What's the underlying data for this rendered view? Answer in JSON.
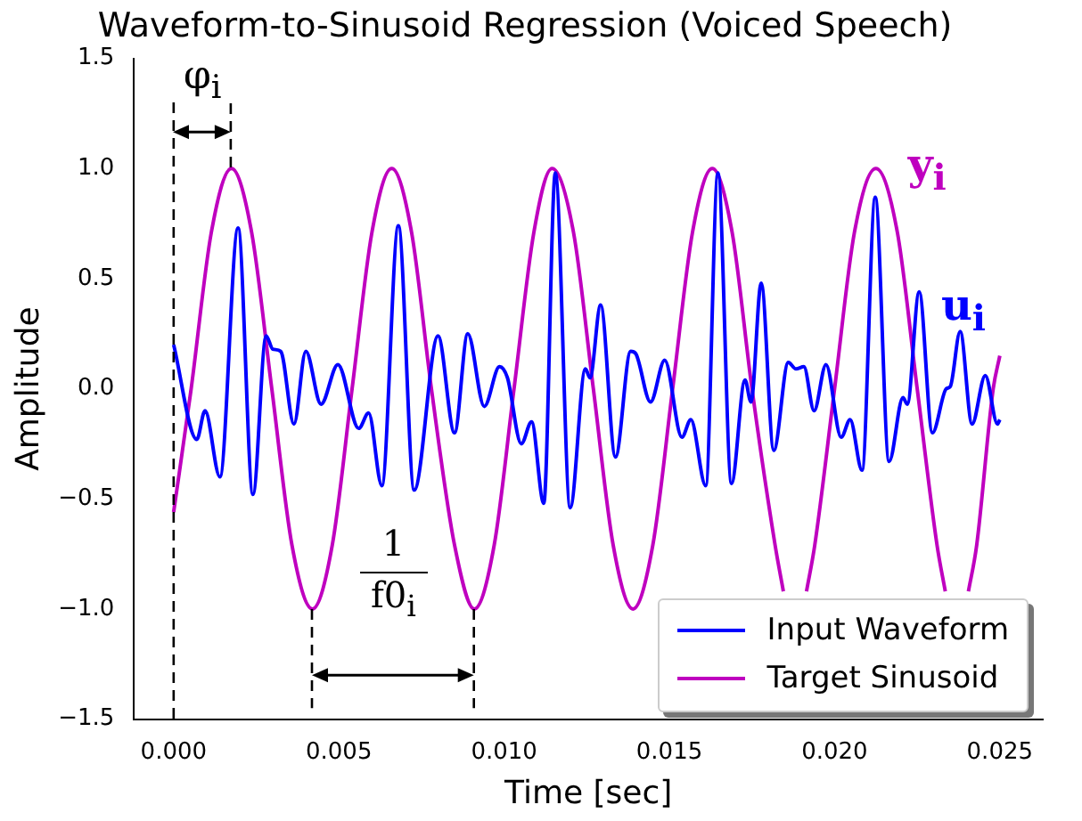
{
  "chart_data": {
    "type": "line",
    "title": "Waveform-to-Sinusoid Regression (Voiced Speech)",
    "xlabel": "Time [sec]",
    "ylabel": "Amplitude",
    "xlim": [
      -0.0012,
      0.0263
    ],
    "ylim": [
      -1.5,
      1.5
    ],
    "xticks": [
      {
        "value": 0,
        "label": "0.000"
      },
      {
        "value": 0.005,
        "label": "0.005"
      },
      {
        "value": 0.01,
        "label": "0.010"
      },
      {
        "value": 0.015,
        "label": "0.015"
      },
      {
        "value": 0.02,
        "label": "0.020"
      },
      {
        "value": 0.025,
        "label": "0.025"
      }
    ],
    "yticks": [
      {
        "value": -1.5,
        "label": "−1.5"
      },
      {
        "value": -1,
        "label": "−1.0"
      },
      {
        "value": -0.5,
        "label": "−0.5"
      },
      {
        "value": 0,
        "label": "0.0"
      },
      {
        "value": 0.5,
        "label": "0.5"
      },
      {
        "value": 1,
        "label": "1.0"
      },
      {
        "value": 1.5,
        "label": "1.5"
      }
    ],
    "grid": false,
    "legend": "bottom right",
    "line_style": "solid",
    "marker": "none",
    "series": [
      {
        "name": "Input Waveform",
        "color": "#0000ff",
        "x": [
          0,
          0.0007,
          0.00095,
          0.0014,
          0.00195,
          0.0024,
          0.0028,
          0.003,
          0.00324,
          0.00364,
          0.004,
          0.00446,
          0.00497,
          0.0056,
          0.0059,
          0.0063,
          0.0068,
          0.00728,
          0.008,
          0.0085,
          0.0089,
          0.0094,
          0.00986,
          0.0101,
          0.01052,
          0.01083,
          0.0112,
          0.01155,
          0.012,
          0.01246,
          0.0126,
          0.01292,
          0.01337,
          0.01383,
          0.01398,
          0.01443,
          0.01486,
          0.01538,
          0.01565,
          0.0161,
          0.01647,
          0.01688,
          0.01729,
          0.01747,
          0.01778,
          0.01816,
          0.0186,
          0.01883,
          0.01907,
          0.01938,
          0.01974,
          0.0202,
          0.02047,
          0.02083,
          0.02123,
          0.02165,
          0.02207,
          0.0222,
          0.02256,
          0.02296,
          0.02338,
          0.0235,
          0.0238,
          0.02416,
          0.02456,
          0.02493,
          0.025
        ],
        "values": [
          0.2,
          -0.23,
          -0.1,
          -0.4,
          0.73,
          -0.48,
          0.24,
          0.18,
          0.17,
          -0.16,
          0.17,
          -0.07,
          0.11,
          -0.18,
          -0.11,
          -0.44,
          0.74,
          -0.46,
          0.24,
          -0.2,
          0.25,
          -0.08,
          0.1,
          0.05,
          -0.25,
          -0.15,
          -0.52,
          0.98,
          -0.54,
          0.09,
          0.05,
          0.38,
          -0.31,
          0.17,
          0.16,
          -0.06,
          0.13,
          -0.22,
          -0.14,
          -0.44,
          0.98,
          -0.43,
          0.04,
          -0.06,
          0.48,
          -0.28,
          0.12,
          0.09,
          0.1,
          -0.1,
          0.11,
          -0.22,
          -0.14,
          -0.37,
          0.87,
          -0.33,
          -0.04,
          -0.07,
          0.44,
          -0.2,
          0,
          0.01,
          0.26,
          -0.16,
          0.06,
          -0.16,
          -0.14
        ]
      },
      {
        "name": "Target Sinusoid",
        "color": "#bf00bf",
        "x": [
          0,
          0.00053,
          0.00114,
          0.00175,
          0.00236,
          0.00297,
          0.00358,
          0.0042,
          0.0048,
          0.0054,
          0.006,
          0.0066,
          0.0072,
          0.0078,
          0.0085,
          0.0091,
          0.0097,
          0.0103,
          0.0109,
          0.01145,
          0.0121,
          0.0127,
          0.0133,
          0.0139,
          0.0145,
          0.0151,
          0.0157,
          0.0163,
          0.0169,
          0.0175,
          0.0182,
          0.01845,
          0.0188,
          0.01915,
          0.0194,
          0.02,
          0.0206,
          0.02125,
          0.0219,
          0.0225,
          0.0231,
          0.02335,
          0.0237,
          0.02405,
          0.0243,
          0.0248,
          0.025
        ],
        "values": [
          -0.56,
          0,
          0.71,
          1,
          0.71,
          0,
          -0.71,
          -1,
          -0.71,
          0,
          0.71,
          1,
          0.71,
          0,
          -0.71,
          -1,
          -0.71,
          0,
          0.71,
          1,
          0.71,
          0,
          -0.71,
          -1,
          -0.71,
          0,
          0.71,
          1,
          0.71,
          0,
          -0.71,
          -0.92,
          null,
          -0.92,
          -0.71,
          0,
          0.71,
          1,
          0.71,
          0,
          -0.71,
          -0.92,
          null,
          -0.92,
          -0.71,
          0,
          0.15
        ]
      }
    ],
    "ref_lines": [
      {
        "axis": "x",
        "value": 0,
        "line_style": "dashed",
        "color": "#000000"
      }
    ],
    "annotations": [
      "u$_{i}$",
      "y$_{i}$",
      "φ$_{i}$",
      "1",
      "f0$_{i}$"
    ]
  }
}
